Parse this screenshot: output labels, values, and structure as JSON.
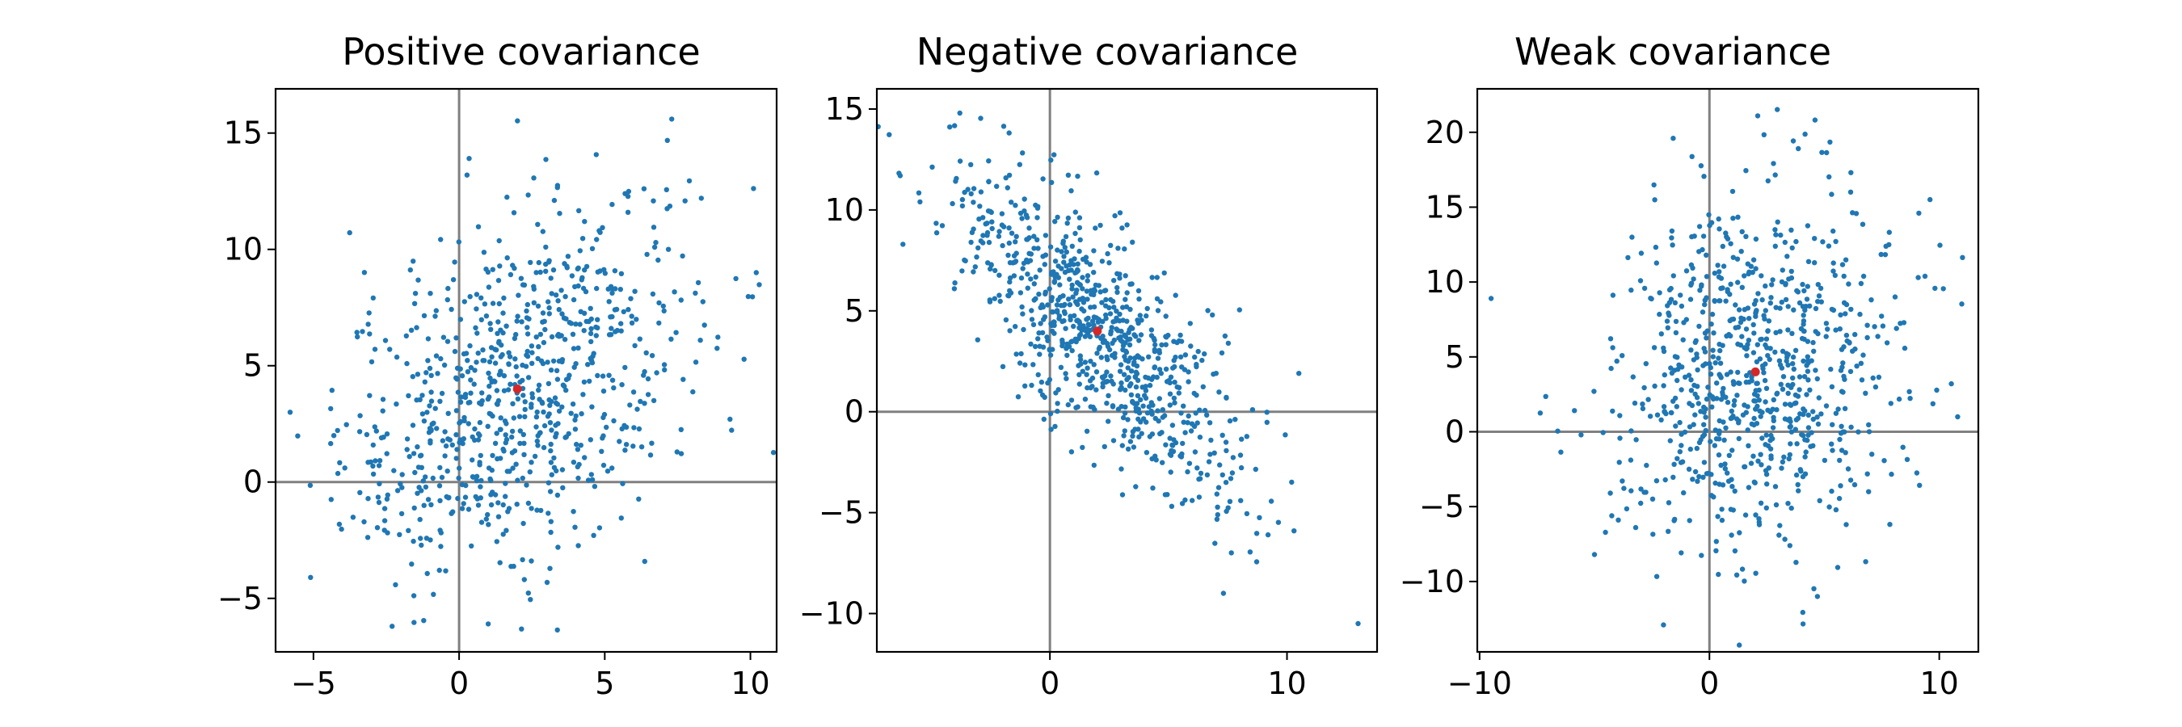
{
  "chart_data": [
    {
      "type": "scatter",
      "title": "Positive covariance",
      "xlabel": "",
      "ylabel": "",
      "xlim": [
        -6.3,
        10.9
      ],
      "ylim": [
        -7.3,
        16.9
      ],
      "xticks": [
        -5,
        0,
        5,
        10
      ],
      "yticks": [
        -5,
        0,
        5,
        10,
        15
      ],
      "grid": false,
      "reference_lines": {
        "x": 0,
        "y": 0,
        "color": "#808080"
      },
      "point_color": "#1f77b4",
      "mean_color": "#d62728",
      "mean": [
        2,
        4
      ],
      "n_points": 800,
      "cov": [
        [
          9,
          5
        ],
        [
          5,
          16
        ]
      ],
      "sample_points": [
        [
          10.2,
          9.0
        ],
        [
          7.3,
          15.6
        ],
        [
          -5.8,
          3.0
        ],
        [
          -2.3,
          -6.2
        ],
        [
          1.0,
          -6.1
        ],
        [
          9.3,
          2.7
        ],
        [
          -5.1,
          -4.1
        ]
      ]
    },
    {
      "type": "scatter",
      "title": "Negative covariance",
      "xlabel": "",
      "ylabel": "",
      "xlim": [
        -7.3,
        13.8
      ],
      "ylim": [
        -11.9,
        16.0
      ],
      "xticks": [
        0,
        10
      ],
      "yticks": [
        -10,
        -5,
        0,
        5,
        10,
        15
      ],
      "grid": false,
      "reference_lines": {
        "x": 0,
        "y": 0,
        "color": "#808080"
      },
      "point_color": "#1f77b4",
      "mean_color": "#d62728",
      "mean": [
        2,
        4
      ],
      "n_points": 800,
      "cov": [
        [
          9,
          -9
        ],
        [
          -9,
          16
        ]
      ],
      "sample_points": [
        [
          13.0,
          -10.5
        ],
        [
          -6.2,
          8.3
        ],
        [
          -3.8,
          14.8
        ],
        [
          9.2,
          -6.1
        ],
        [
          10.5,
          1.9
        ],
        [
          6.0,
          -4.4
        ]
      ]
    },
    {
      "type": "scatter",
      "title": "Weak covariance",
      "xlabel": "",
      "ylabel": "",
      "xlim": [
        -10.1,
        11.7
      ],
      "ylim": [
        -14.7,
        22.9
      ],
      "xticks": [
        -10,
        0,
        10
      ],
      "yticks": [
        -10,
        -5,
        0,
        5,
        10,
        15,
        20
      ],
      "grid": false,
      "reference_lines": {
        "x": 0,
        "y": 0,
        "color": "#808080"
      },
      "point_color": "#1f77b4",
      "mean_color": "#d62728",
      "mean": [
        2,
        4
      ],
      "n_points": 800,
      "cov": [
        [
          9,
          1
        ],
        [
          1,
          36
        ]
      ],
      "sample_points": [
        [
          -9.5,
          8.9
        ],
        [
          2.1,
          21.1
        ],
        [
          -2.0,
          -12.9
        ],
        [
          10.8,
          1.0
        ],
        [
          4.7,
          -11.0
        ],
        [
          -5.0,
          -8.2
        ]
      ]
    }
  ]
}
